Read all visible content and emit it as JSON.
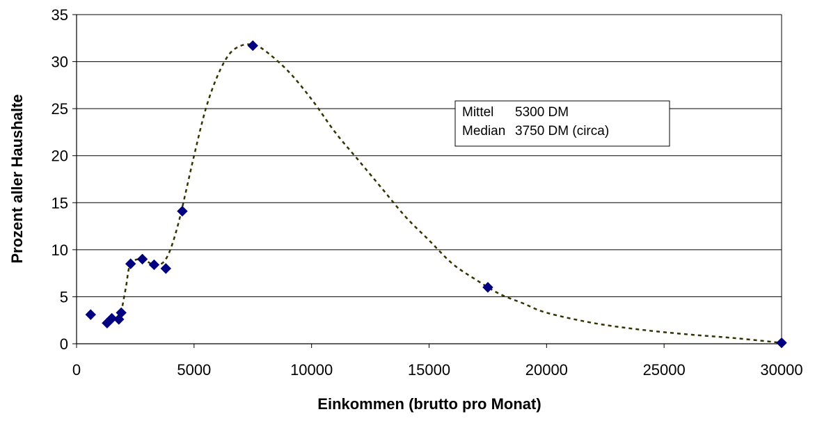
{
  "chart_data": {
    "type": "scatter",
    "title": "",
    "xlabel": "Einkommen (brutto pro Monat)",
    "ylabel": "Prozent aller Haushalte",
    "xlim": [
      0,
      30000
    ],
    "ylim": [
      0,
      35
    ],
    "xticks": [
      0,
      5000,
      10000,
      15000,
      20000,
      25000,
      30000
    ],
    "yticks": [
      0,
      5,
      10,
      15,
      20,
      25,
      30,
      35
    ],
    "grid": "horizontal",
    "legend": "none",
    "marker_color": "#000080",
    "curve_color": "#333300",
    "points": [
      {
        "x": 600,
        "y": 3.1
      },
      {
        "x": 1300,
        "y": 2.2
      },
      {
        "x": 1500,
        "y": 2.7
      },
      {
        "x": 1800,
        "y": 2.6
      },
      {
        "x": 1900,
        "y": 3.3
      },
      {
        "x": 2300,
        "y": 8.5
      },
      {
        "x": 2800,
        "y": 9.0
      },
      {
        "x": 3300,
        "y": 8.4
      },
      {
        "x": 3800,
        "y": 8.0
      },
      {
        "x": 4500,
        "y": 14.1
      },
      {
        "x": 7500,
        "y": 31.7
      },
      {
        "x": 17500,
        "y": 6.0
      },
      {
        "x": 30000,
        "y": 0.1
      }
    ],
    "fit_curve": [
      {
        "x": 1900,
        "y": 3.3
      },
      {
        "x": 2100,
        "y": 6.0
      },
      {
        "x": 2300,
        "y": 8.5
      },
      {
        "x": 2800,
        "y": 9.0
      },
      {
        "x": 3300,
        "y": 8.4
      },
      {
        "x": 3800,
        "y": 9.0
      },
      {
        "x": 4300,
        "y": 12.5
      },
      {
        "x": 5000,
        "y": 20.0
      },
      {
        "x": 5500,
        "y": 25.0
      },
      {
        "x": 6000,
        "y": 28.5
      },
      {
        "x": 6500,
        "y": 30.8
      },
      {
        "x": 7000,
        "y": 31.7
      },
      {
        "x": 7500,
        "y": 31.8
      },
      {
        "x": 8000,
        "y": 31.2
      },
      {
        "x": 9000,
        "y": 29.0
      },
      {
        "x": 10000,
        "y": 26.0
      },
      {
        "x": 11000,
        "y": 22.5
      },
      {
        "x": 12000,
        "y": 19.5
      },
      {
        "x": 13000,
        "y": 16.5
      },
      {
        "x": 14000,
        "y": 13.5
      },
      {
        "x": 15000,
        "y": 11.0
      },
      {
        "x": 16000,
        "y": 8.5
      },
      {
        "x": 17000,
        "y": 6.8
      },
      {
        "x": 18000,
        "y": 5.3
      },
      {
        "x": 19000,
        "y": 4.3
      },
      {
        "x": 20000,
        "y": 3.3
      },
      {
        "x": 22000,
        "y": 2.2
      },
      {
        "x": 24000,
        "y": 1.5
      },
      {
        "x": 26000,
        "y": 1.0
      },
      {
        "x": 28000,
        "y": 0.6
      },
      {
        "x": 30000,
        "y": 0.1
      }
    ],
    "annotation": {
      "rows": [
        {
          "label": "Mittel",
          "value": "5300 DM"
        },
        {
          "label": "Median",
          "value": "3750 DM (circa)"
        }
      ]
    }
  }
}
